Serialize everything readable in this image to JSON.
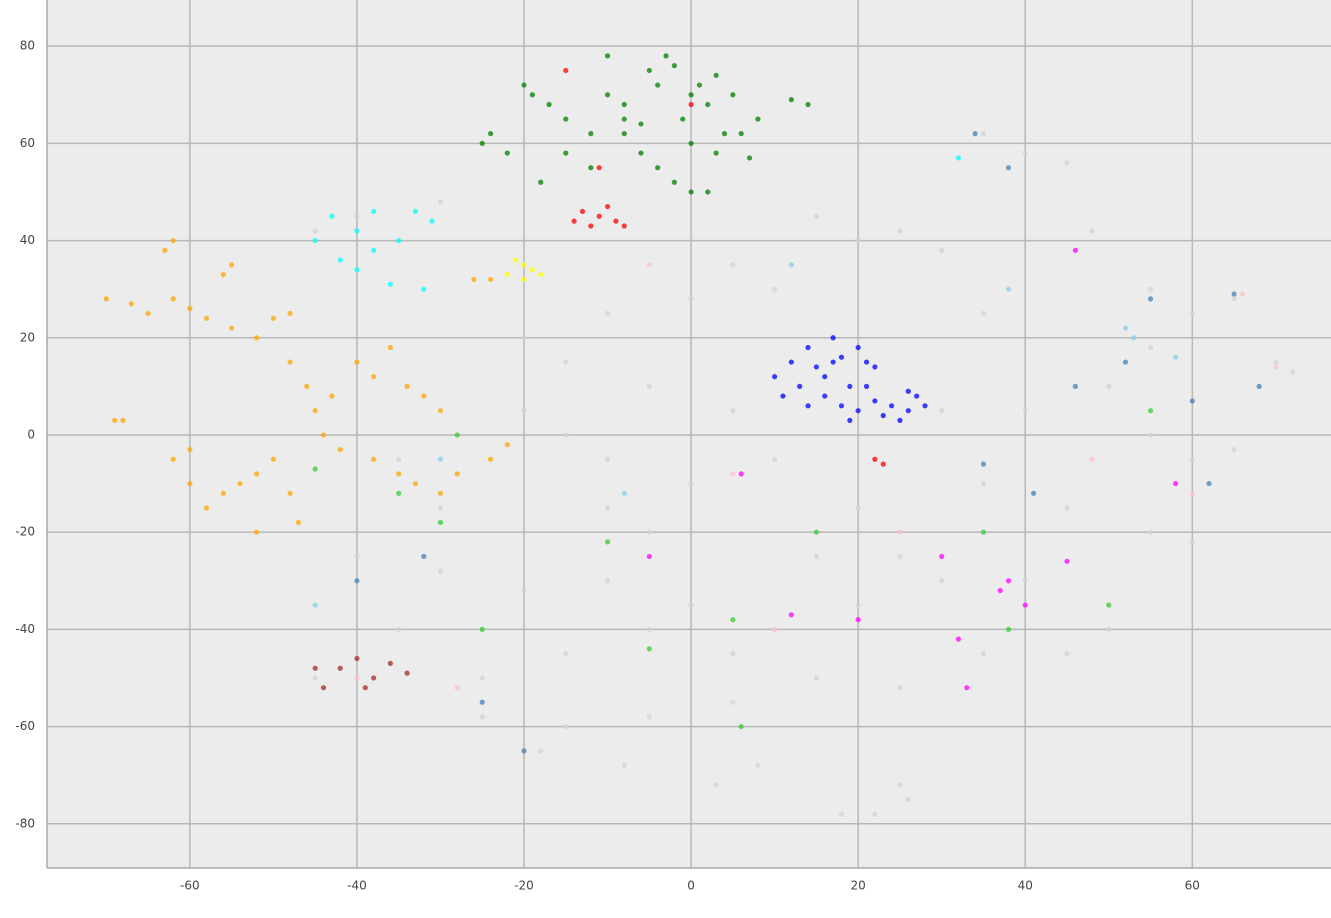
{
  "chart_data": {
    "type": "scatter",
    "xlim": [
      -77.1,
      76.6
    ],
    "ylim": [
      -89.1,
      89.5
    ],
    "xticks": [
      -60,
      -40,
      -20,
      0,
      20,
      40,
      60
    ],
    "yticks": [
      -80,
      -60,
      -40,
      -20,
      0,
      20,
      40,
      60,
      80
    ],
    "grid": true,
    "series": [
      {
        "color": "#d3d3d3",
        "x": [
          -40,
          -30,
          -45,
          -20,
          -10,
          0,
          5,
          10,
          15,
          20,
          25,
          30,
          35,
          40,
          45,
          48,
          55,
          60,
          65,
          70,
          72,
          -15,
          -5,
          5,
          -15,
          -10,
          0,
          10,
          30,
          40,
          50,
          55,
          60,
          65,
          35,
          45,
          55,
          60,
          -40,
          -30,
          -20,
          -10,
          0,
          10,
          20,
          30,
          40,
          -45,
          -25,
          -15,
          -5,
          5,
          15,
          25,
          35,
          -25,
          -15,
          -5,
          5,
          -18,
          -8,
          3,
          8,
          25,
          22,
          18,
          26,
          -35,
          -30,
          -20,
          -10,
          20,
          25,
          50,
          45,
          35,
          55,
          -35,
          15,
          -5
        ],
        "values": [
          45,
          48,
          42,
          20,
          25,
          28,
          35,
          30,
          45,
          40,
          42,
          38,
          62,
          58,
          56,
          42,
          30,
          25,
          28,
          15,
          13,
          15,
          10,
          5,
          0,
          -5,
          -10,
          -5,
          5,
          5,
          10,
          0,
          -5,
          -3,
          -10,
          -15,
          -20,
          -22,
          -25,
          -28,
          -32,
          -30,
          -35,
          -40,
          -35,
          -30,
          -30,
          -50,
          -50,
          -45,
          -40,
          -45,
          -50,
          -52,
          -45,
          -58,
          -60,
          -58,
          -55,
          -65,
          -68,
          -72,
          -68,
          -72,
          -78,
          -78,
          -75,
          -40,
          -15,
          5,
          -15,
          -15,
          -25,
          -40,
          -45,
          25,
          18,
          -5,
          -25,
          -20
        ]
      },
      {
        "color": "#ffa500",
        "x": [
          -70,
          -67,
          -65,
          -62,
          -60,
          -58,
          -55,
          -52,
          -50,
          -48,
          -63,
          -62,
          -55,
          -56,
          -69,
          -68,
          -60,
          -62,
          -60,
          -58,
          -56,
          -54,
          -52,
          -50,
          -48,
          -45,
          -43,
          -40,
          -38,
          -36,
          -34,
          -32,
          -30,
          -44,
          -42,
          -38,
          -35,
          -33,
          -30,
          -28,
          -46,
          -48,
          -22,
          -24,
          -26,
          -24,
          -47,
          -52
        ],
        "values": [
          28,
          27,
          25,
          28,
          26,
          24,
          22,
          20,
          24,
          25,
          38,
          40,
          35,
          33,
          3,
          3,
          -3,
          -5,
          -10,
          -15,
          -12,
          -10,
          -8,
          -5,
          -12,
          5,
          8,
          15,
          12,
          18,
          10,
          8,
          5,
          0,
          -3,
          -5,
          -8,
          -10,
          -12,
          -8,
          10,
          15,
          -2,
          -5,
          32,
          32,
          -18,
          -20
        ]
      },
      {
        "color": "#008000",
        "x": [
          -25,
          -24,
          -22,
          -20,
          -19,
          -17,
          -15,
          -12,
          -10,
          -8,
          -5,
          -4,
          -3,
          -2,
          0,
          1,
          2,
          3,
          5,
          6,
          7,
          -6,
          -4,
          -2,
          0,
          2,
          -8,
          -12,
          -18,
          -15,
          0,
          4,
          8,
          12,
          14,
          -10,
          -8,
          -1,
          3,
          -6
        ],
        "values": [
          60,
          62,
          58,
          72,
          70,
          68,
          65,
          62,
          70,
          68,
          75,
          72,
          78,
          76,
          70,
          72,
          68,
          74,
          70,
          62,
          57,
          58,
          55,
          52,
          50,
          50,
          62,
          55,
          52,
          58,
          60,
          62,
          65,
          69,
          68,
          78,
          65,
          65,
          58,
          64
        ]
      },
      {
        "color": "#0000ff",
        "x": [
          10,
          12,
          14,
          16,
          18,
          20,
          22,
          16,
          18,
          20,
          22,
          24,
          26,
          27,
          25,
          13,
          15,
          17,
          19,
          21,
          23,
          11,
          14,
          19,
          28,
          26,
          17,
          21
        ],
        "values": [
          12,
          15,
          18,
          12,
          16,
          18,
          14,
          8,
          6,
          5,
          7,
          6,
          5,
          8,
          3,
          10,
          14,
          20,
          10,
          10,
          4,
          8,
          6,
          3,
          6,
          9,
          15,
          15
        ]
      },
      {
        "color": "#00ffff",
        "x": [
          -43,
          -40,
          -38,
          -35,
          -33,
          -42,
          -40,
          -31,
          -45,
          -38,
          32,
          -32,
          -36
        ],
        "values": [
          45,
          42,
          38,
          40,
          46,
          36,
          34,
          44,
          40,
          46,
          57,
          30,
          31
        ]
      },
      {
        "color": "#ff0000",
        "x": [
          -13,
          -11,
          -10,
          -9,
          -12,
          -8,
          -14,
          22,
          23,
          -15,
          0,
          -11
        ],
        "values": [
          46,
          45,
          47,
          44,
          43,
          43,
          44,
          -5,
          -6,
          75,
          68,
          55
        ]
      },
      {
        "color": "#ffff00",
        "x": [
          -22,
          -20,
          -19,
          -21,
          -18,
          -20
        ],
        "values": [
          33,
          35,
          34,
          36,
          33,
          32
        ]
      },
      {
        "color": "#32cd32",
        "x": [
          -45,
          -28,
          -35,
          -30,
          -10,
          5,
          15,
          35,
          38,
          50,
          55,
          -25,
          -5,
          6
        ],
        "values": [
          -7,
          0,
          -12,
          -18,
          -22,
          -38,
          -20,
          -20,
          -40,
          -35,
          5,
          -40,
          -44,
          -60
        ]
      },
      {
        "color": "#a52a2a",
        "x": [
          -45,
          -42,
          -40,
          -38,
          -36,
          -44,
          -39,
          -34
        ],
        "values": [
          -48,
          -48,
          -46,
          -50,
          -47,
          -52,
          -52,
          -49
        ]
      },
      {
        "color": "#ff00ff",
        "x": [
          -5,
          6,
          12,
          20,
          30,
          32,
          37,
          38,
          46,
          40,
          58,
          33,
          45
        ],
        "values": [
          -25,
          -8,
          -37,
          -38,
          -25,
          -42,
          -32,
          -30,
          38,
          -35,
          -10,
          -52,
          -26
        ]
      },
      {
        "color": "#4682b4",
        "x": [
          34,
          38,
          55,
          65,
          46,
          52,
          60,
          68,
          35,
          -40,
          -25,
          41,
          -32,
          -20,
          62
        ],
        "values": [
          62,
          55,
          28,
          29,
          10,
          15,
          7,
          10,
          -6,
          -30,
          -55,
          -12,
          -25,
          -65,
          -10
        ]
      },
      {
        "color": "#87ceeb",
        "x": [
          52,
          53,
          -45,
          -8,
          38,
          58,
          -30,
          12
        ],
        "values": [
          22,
          20,
          -35,
          -12,
          30,
          16,
          -5,
          35
        ]
      },
      {
        "color": "#ffc0cb",
        "x": [
          -5,
          5,
          -40,
          66,
          70,
          60,
          25,
          48,
          10,
          -28
        ],
        "values": [
          35,
          -8,
          -50,
          29,
          14,
          -12,
          -20,
          -5,
          -40,
          -52
        ]
      }
    ]
  }
}
